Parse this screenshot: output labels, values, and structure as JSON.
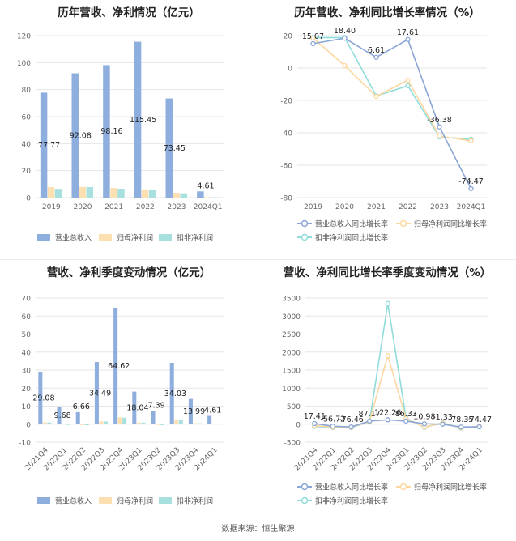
{
  "footer": "数据来源：恒生聚源",
  "colors": {
    "revenue_bar": "#8eaede",
    "parent_bar": "#fde0b1",
    "deduct_bar": "#a8e0e0",
    "revenue_line": "#8aa6d6",
    "parent_line": "#fcd7a0",
    "deduct_line": "#8fdcda",
    "grid": "#e6e6e6",
    "axis_text": "#666666"
  },
  "chart_data": [
    {
      "type": "bar",
      "title": "历年营收、净利情况（亿元）",
      "categories": [
        "2019",
        "2020",
        "2021",
        "2022",
        "2023",
        "2024Q1"
      ],
      "series": [
        {
          "name": "营业总收入",
          "values": [
            77.77,
            92.08,
            98.16,
            115.45,
            73.45,
            4.61
          ]
        },
        {
          "name": "归母净利润",
          "values": [
            7.8,
            7.9,
            7.2,
            6.1,
            3.6,
            0.3
          ]
        },
        {
          "name": "扣非净利润",
          "values": [
            6.5,
            7.8,
            6.6,
            5.7,
            3.2,
            0.25
          ]
        }
      ],
      "data_labels": [
        "77.77",
        "92.08",
        "98.16",
        "115.45",
        "73.45",
        "4.61"
      ],
      "ylim": [
        0,
        120
      ],
      "yticks": [
        0,
        20,
        40,
        60,
        80,
        100,
        120
      ],
      "legend": "bottom",
      "grid": true
    },
    {
      "type": "line",
      "title": "历年营收、净利同比增长率情况（%）",
      "categories": [
        "2019",
        "2020",
        "2021",
        "2022",
        "2023",
        "2024Q1"
      ],
      "series": [
        {
          "name": "营业总收入同比增长率",
          "values": [
            15.07,
            18.4,
            6.61,
            17.61,
            -36.38,
            -74.47
          ]
        },
        {
          "name": "归母净利润同比增长率",
          "values": [
            18.5,
            1.5,
            -17.5,
            -7.5,
            -42,
            -45
          ]
        },
        {
          "name": "扣非净利润同比增长率",
          "values": [
            18.8,
            18.8,
            -17.2,
            -11,
            -42.5,
            -44
          ]
        }
      ],
      "data_labels": [
        "15.07",
        "18.40",
        "6.61",
        "17.61",
        "-36.38",
        "-74.47"
      ],
      "ylim": [
        -80,
        20
      ],
      "yticks": [
        -80,
        -60,
        -40,
        -20,
        0,
        20
      ],
      "legend": "bottom",
      "grid": true
    },
    {
      "type": "bar",
      "title": "营收、净利季度变动情况（亿元）",
      "categories": [
        "2021Q4",
        "2022Q1",
        "2022Q2",
        "2022Q3",
        "2022Q4",
        "2023Q1",
        "2023Q2",
        "2023Q3",
        "2023Q4",
        "2024Q1"
      ],
      "series": [
        {
          "name": "营业总收入",
          "values": [
            29.08,
            9.68,
            6.66,
            34.49,
            64.62,
            18.04,
            7.39,
            34.03,
            13.99,
            4.61
          ]
        },
        {
          "name": "归母净利润",
          "values": [
            1.0,
            -0.3,
            -0.5,
            1.6,
            3.8,
            0.9,
            -0.4,
            2.4,
            0.6,
            0.3
          ]
        },
        {
          "name": "扣非净利润",
          "values": [
            0.9,
            -0.4,
            -0.6,
            1.5,
            3.6,
            0.8,
            -0.5,
            2.3,
            0.5,
            0.25
          ]
        }
      ],
      "data_labels": [
        "29.08",
        "9.68",
        "6.66",
        "34.49",
        "64.62",
        "18.04",
        "7.39",
        "34.03",
        "13.99",
        "4.61"
      ],
      "ylim": [
        -10,
        70
      ],
      "yticks": [
        -10,
        0,
        10,
        20,
        30,
        40,
        50,
        60,
        70
      ],
      "legend": "bottom",
      "grid": true
    },
    {
      "type": "line",
      "title": "营收、净利同比增长率季度变动情况（%）",
      "categories": [
        "2021Q4",
        "2022Q1",
        "2022Q2",
        "2022Q3",
        "2022Q4",
        "2023Q1",
        "2023Q2",
        "2023Q3",
        "2023Q4",
        "2024Q1"
      ],
      "series": [
        {
          "name": "营业总收入同比增长率",
          "values": [
            17.41,
            -56.72,
            -76.46,
            87.17,
            122.26,
            86.33,
            10.98,
            -1.33,
            -78.35,
            -74.47
          ]
        },
        {
          "name": "归母净利润同比增长率",
          "values": [
            -40,
            -80,
            -90,
            70,
            1900,
            150,
            -80,
            30,
            -100,
            -60
          ]
        },
        {
          "name": "扣非净利润同比增长率",
          "values": [
            -60,
            -90,
            -95,
            60,
            3350,
            170,
            -90,
            40,
            -110,
            -65
          ]
        }
      ],
      "data_labels": [
        "17.41",
        "-56.72",
        "-76.46",
        "87.17",
        "122.26",
        "86.33",
        "10.98",
        "-1.33",
        "-78.35",
        "-74.47"
      ],
      "ylim": [
        -500,
        3500
      ],
      "yticks": [
        -500,
        0,
        500,
        1000,
        1500,
        2000,
        2500,
        3000,
        3500
      ],
      "legend": "bottom",
      "grid": true
    }
  ]
}
